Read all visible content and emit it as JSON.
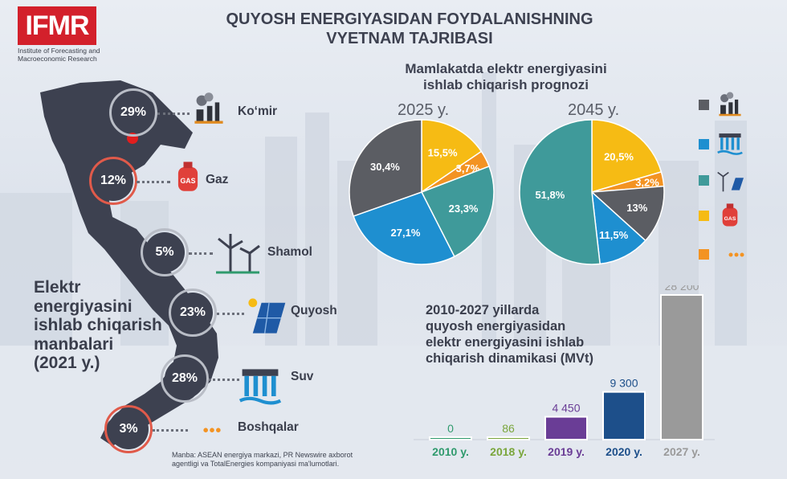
{
  "logo": {
    "text": "IFMR",
    "subtitle_line1": "Institute of Forecasting and",
    "subtitle_line2": "Macroeconomic Research"
  },
  "title": {
    "line1": "QUYOSH ENERGIYASIDAN FOYDALANISHNING",
    "line2": "VYETNAM TAJRIBASI"
  },
  "sources_2021": {
    "title_lines": [
      "Elektr",
      "energiyasini",
      "ishlab chiqarish",
      "manbalari",
      "(2021 y.)"
    ],
    "items": [
      {
        "pct": "29%",
        "label": "Ko‘mir",
        "icon": "coal-plant-icon"
      },
      {
        "pct": "12%",
        "label": "Gaz",
        "icon": "gas-cylinder-icon"
      },
      {
        "pct": "5%",
        "label": "Shamol",
        "icon": "wind-turbine-icon"
      },
      {
        "pct": "23%",
        "label": "Quyosh",
        "icon": "solar-panel-icon"
      },
      {
        "pct": "28%",
        "label": "Suv",
        "icon": "hydro-dam-icon"
      },
      {
        "pct": "3%",
        "label": "Boshqalar",
        "icon": "dots-icon"
      }
    ],
    "gas_icon_text": "GAS"
  },
  "forecast": {
    "title_line1": "Mamlakatda elektr energiyasini",
    "title_line2": "ishlab chiqarish prognozi"
  },
  "legend": [
    {
      "color": "#5b5d63",
      "icon": "coal-plant-icon"
    },
    {
      "color": "#1e8fd0",
      "icon": "hydro-dam-icon"
    },
    {
      "color": "#3f9a9a",
      "icon": "wind-solar-icon"
    },
    {
      "color": "#f6bb14",
      "icon": "gas-cylinder-icon"
    },
    {
      "color": "#f39322",
      "icon": "dots-icon"
    }
  ],
  "colors": {
    "coal": "#5b5d63",
    "hydro": "#1e8fd0",
    "wind_solar": "#3f9a9a",
    "gas": "#f6bb14",
    "other": "#f39322"
  },
  "chart_data": [
    {
      "type": "pie",
      "title": "2025 y.",
      "slices": [
        {
          "name": "Gaz",
          "value": 15.5,
          "label": "15,5%",
          "color": "#f6bb14"
        },
        {
          "name": "Boshqalar",
          "value": 3.7,
          "label": "3,7%",
          "color": "#f39322"
        },
        {
          "name": "Shamol va quyosh",
          "value": 23.3,
          "label": "23,3%",
          "color": "#3f9a9a"
        },
        {
          "name": "Suv",
          "value": 27.1,
          "label": "27,1%",
          "color": "#1e8fd0"
        },
        {
          "name": "Ko‘mir",
          "value": 30.4,
          "label": "30,4%",
          "color": "#5b5d63"
        }
      ]
    },
    {
      "type": "pie",
      "title": "2045 y.",
      "slices": [
        {
          "name": "Gaz",
          "value": 20.5,
          "label": "20,5%",
          "color": "#f6bb14"
        },
        {
          "name": "Boshqalar",
          "value": 3.2,
          "label": "3,2%",
          "color": "#f39322"
        },
        {
          "name": "Ko‘mir",
          "value": 13,
          "label": "13%",
          "color": "#5b5d63"
        },
        {
          "name": "Suv",
          "value": 11.5,
          "label": "11,5%",
          "color": "#1e8fd0"
        },
        {
          "name": "Shamol va quyosh",
          "value": 51.8,
          "label": "51,8%",
          "color": "#3f9a9a"
        }
      ]
    },
    {
      "type": "bar",
      "title_lines": [
        "2010-2027 yillarda",
        "quyosh energiyasidan",
        "elektr energiyasini ishlab",
        "chiqarish dinamikasi (MVt)"
      ],
      "categories": [
        "2010 y.",
        "2018 y.",
        "2019 y.",
        "2020 y.",
        "2027 y."
      ],
      "values": [
        0,
        86,
        4450,
        9300,
        28200
      ],
      "value_labels": [
        "0",
        "86",
        "4 450",
        "9 300",
        "28 200"
      ],
      "colors": [
        "#2f9a6d",
        "#7aa63c",
        "#6a3d96",
        "#1d4f8a",
        "#9a9a9a"
      ],
      "ylim": [
        0,
        28200
      ]
    }
  ],
  "source_note": {
    "line1": "Manba: ASEAN energiya markazi, PR Newswire axborot",
    "line2": "agentligi va TotalEnergies kompaniyasi ma'lumotlari."
  }
}
